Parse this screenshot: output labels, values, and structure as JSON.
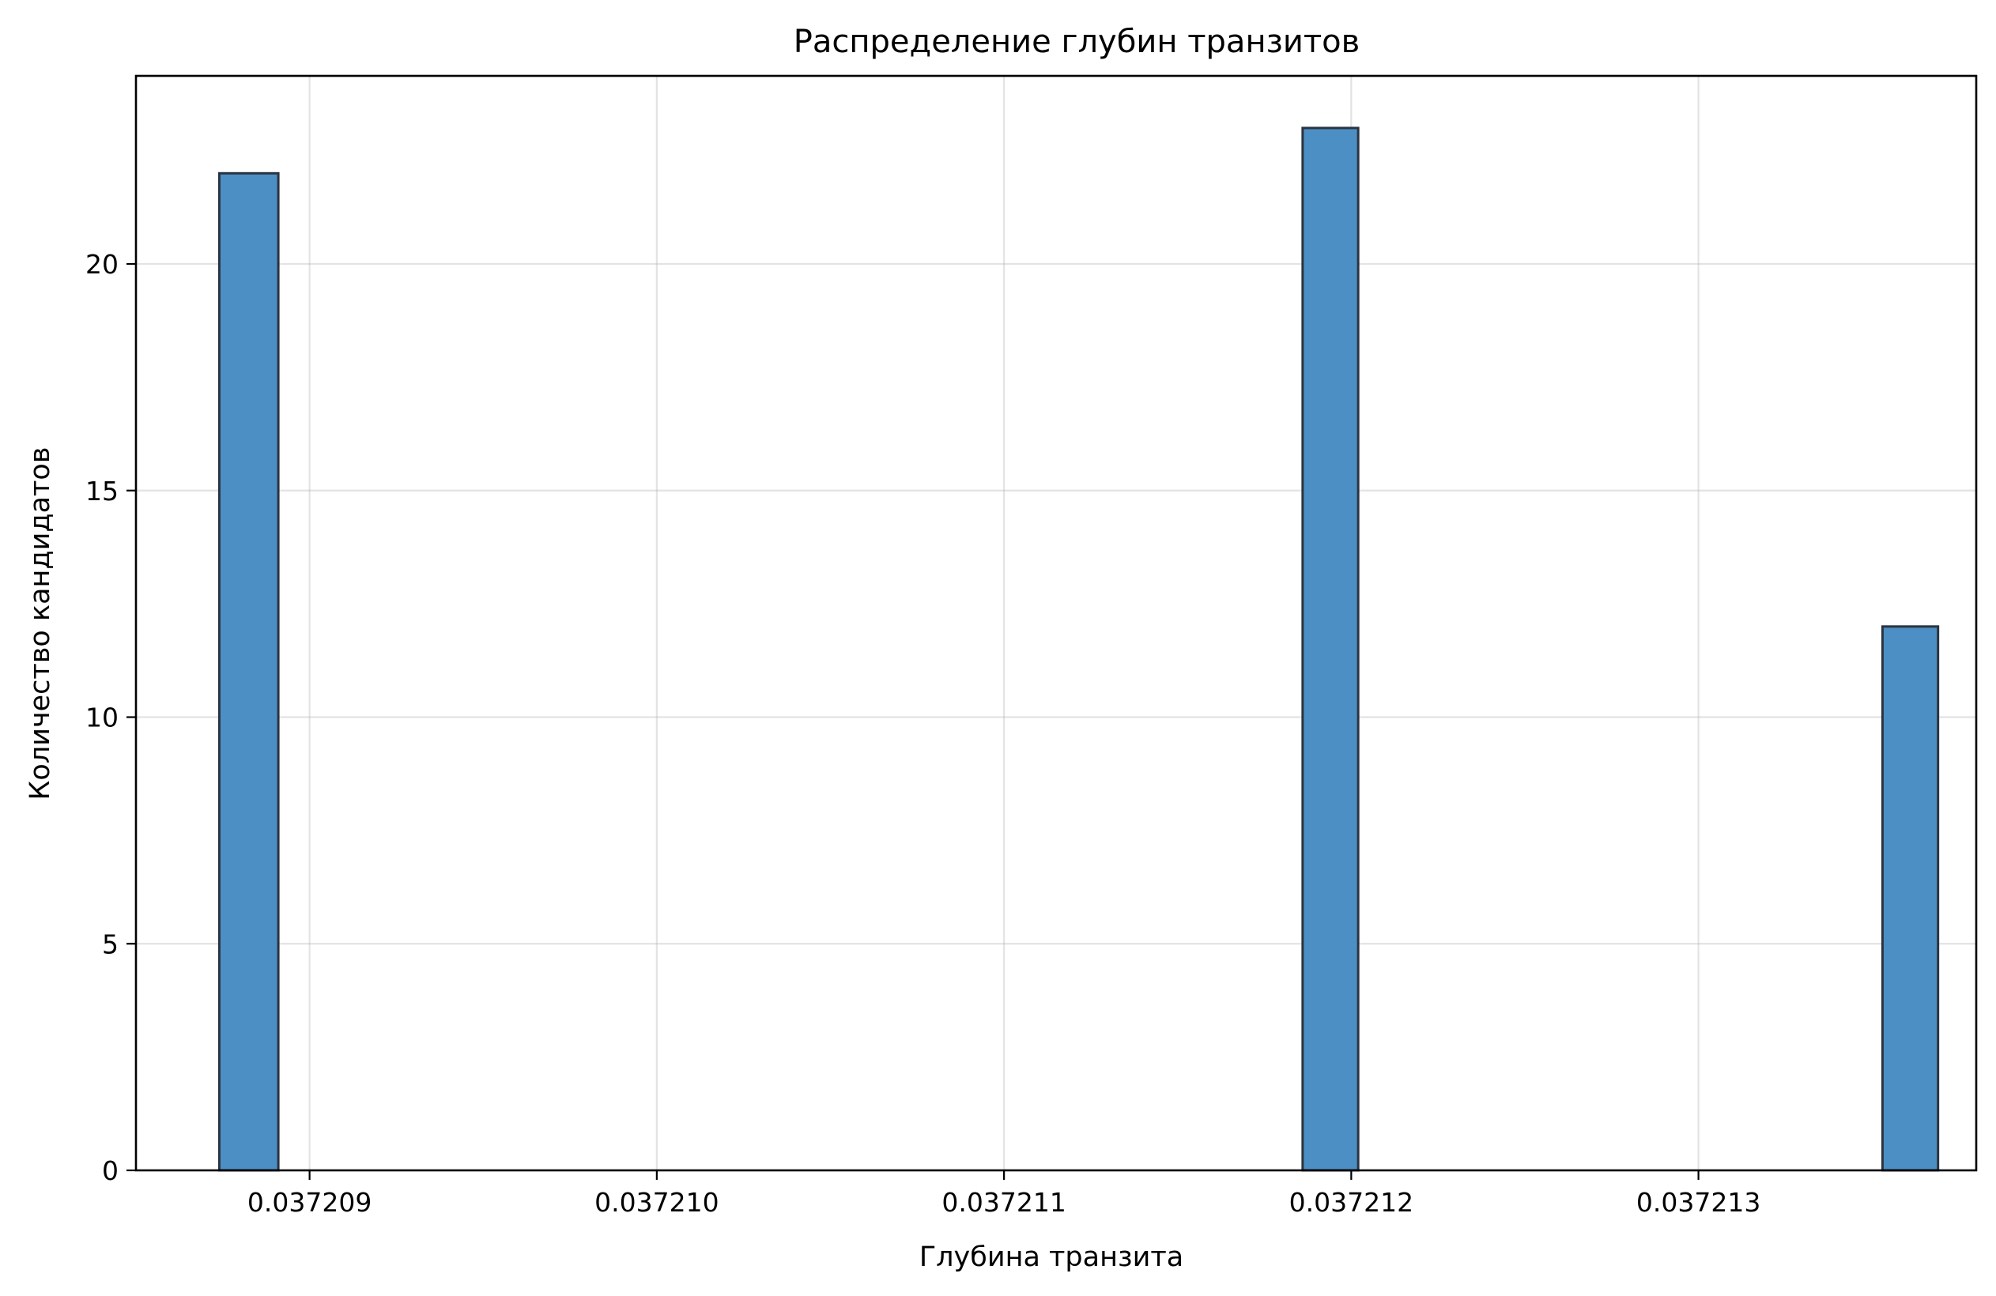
{
  "chart_data": {
    "type": "bar",
    "title": "Распределение глубин транзитов",
    "xlabel": "Глубина транзита",
    "ylabel": "Количество кандидатов",
    "xlim": [
      0.0372085,
      0.0372138
    ],
    "ylim": [
      0,
      24.15
    ],
    "x_ticks": [
      0.037209,
      0.03721,
      0.037211,
      0.037212,
      0.037213
    ],
    "x_tick_labels": [
      "0.037209",
      "0.037210",
      "0.037211",
      "0.037212",
      "0.037213"
    ],
    "y_ticks": [
      0,
      5,
      10,
      15,
      20
    ],
    "y_tick_labels": [
      "0",
      "5",
      "10",
      "15",
      "20"
    ],
    "grid": true,
    "bar_color": "#4c8fc4",
    "bar_edge_color": "#2a3440",
    "bins": [
      {
        "x_start": 0.03720874,
        "x_end": 0.03720891,
        "value": 22
      },
      {
        "x_start": 0.03721186,
        "x_end": 0.03721202,
        "value": 23
      },
      {
        "x_start": 0.03721353,
        "x_end": 0.03721369,
        "value": 12
      }
    ]
  }
}
